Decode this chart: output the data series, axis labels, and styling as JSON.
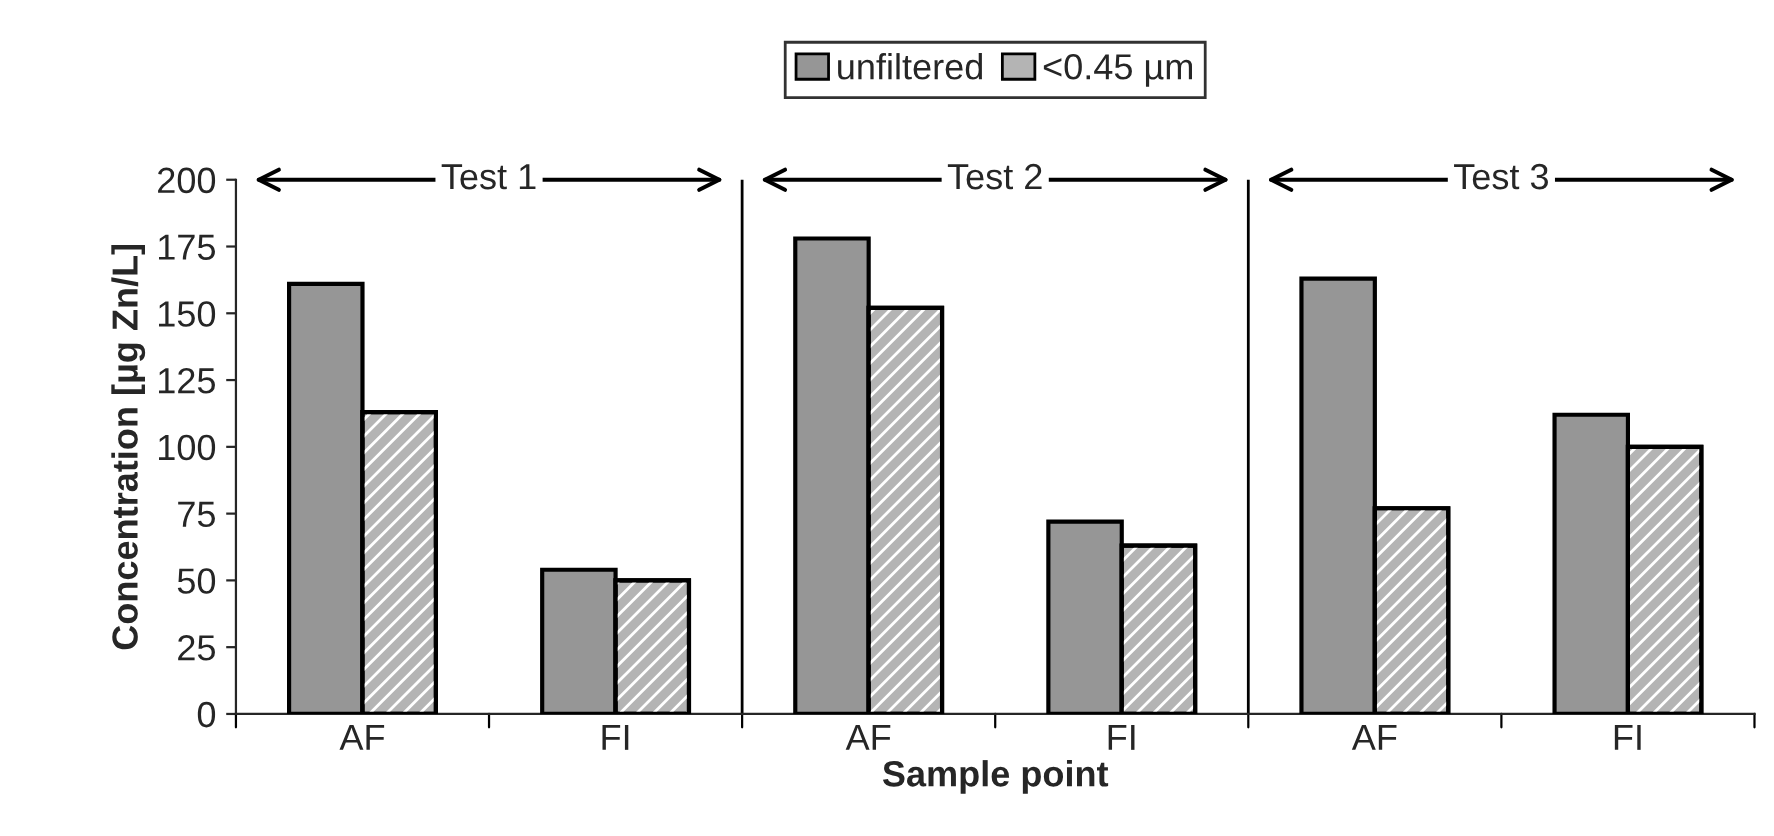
{
  "chart_data": {
    "type": "bar",
    "categories": [
      "AF",
      "FI",
      "AF",
      "FI",
      "AF",
      "FI"
    ],
    "series": [
      {
        "name": "unfiltered",
        "color": "#969696",
        "values": [
          161,
          54,
          178,
          72,
          163,
          112
        ]
      },
      {
        "name": "<0.45 µm",
        "color": "#b4b4b4",
        "values": [
          113,
          50,
          152,
          63,
          77,
          100
        ]
      }
    ],
    "xlabel": "Sample point",
    "ylabel": "Concentration [µg Zn/L]",
    "ylim": [
      0,
      200
    ],
    "yticks": [
      0,
      25,
      50,
      75,
      100,
      125,
      150,
      175,
      200
    ],
    "annotations": [
      "Test 1",
      "Test 2",
      "Test 3"
    ],
    "legend": "top",
    "grid": false
  }
}
